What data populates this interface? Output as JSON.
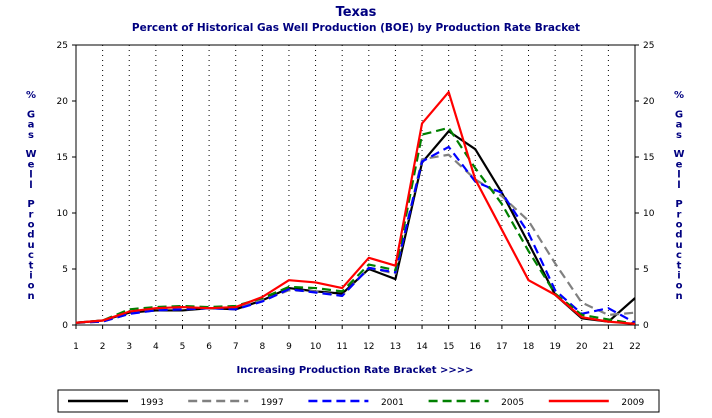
{
  "chart_data": {
    "type": "line",
    "title": "Texas",
    "subtitle": "Percent of Historical Gas Well Production (BOE) by Production Rate Bracket",
    "xlabel": "Increasing Production Rate Bracket >>>>",
    "ylabel": "% Gas Well Production",
    "xlim": [
      1,
      22
    ],
    "ylim": [
      0,
      25
    ],
    "x": [
      1,
      2,
      3,
      4,
      5,
      6,
      7,
      8,
      9,
      10,
      11,
      12,
      13,
      14,
      15,
      16,
      17,
      18,
      19,
      20,
      21,
      22
    ],
    "yticks": [
      0,
      5,
      10,
      15,
      20,
      25
    ],
    "grid": true,
    "legend_position": "bottom",
    "series": [
      {
        "name": "1993",
        "color": "#000000",
        "dash": "solid",
        "values": [
          0.2,
          0.4,
          1.1,
          1.3,
          1.3,
          1.5,
          1.4,
          2.2,
          3.3,
          3.0,
          2.8,
          5.0,
          4.1,
          14.5,
          17.3,
          15.7,
          11.8,
          7.3,
          2.7,
          0.6,
          0.3,
          2.4
        ]
      },
      {
        "name": "1997",
        "color": "#808080",
        "dash": "dashed",
        "values": [
          0.2,
          0.3,
          1.0,
          1.4,
          1.4,
          1.5,
          1.5,
          2.2,
          3.1,
          3.0,
          2.6,
          5.1,
          4.6,
          14.8,
          15.2,
          13.0,
          11.5,
          9.3,
          5.5,
          2.0,
          0.9,
          1.1
        ]
      },
      {
        "name": "2001",
        "color": "#0000ff",
        "dash": "dashed",
        "values": [
          0.2,
          0.3,
          1.0,
          1.3,
          1.4,
          1.5,
          1.4,
          2.1,
          3.2,
          2.9,
          2.6,
          5.1,
          4.7,
          14.6,
          15.9,
          12.8,
          11.8,
          8.2,
          3.1,
          1.0,
          1.5,
          0.2
        ]
      },
      {
        "name": "2005",
        "color": "#008000",
        "dash": "dashed",
        "values": [
          0.2,
          0.4,
          1.4,
          1.6,
          1.7,
          1.6,
          1.7,
          2.4,
          3.4,
          3.3,
          3.0,
          5.4,
          4.9,
          17.0,
          17.6,
          14.0,
          10.8,
          6.6,
          2.8,
          0.9,
          0.5,
          0.1
        ]
      },
      {
        "name": "2009",
        "color": "#ff0000",
        "dash": "solid",
        "values": [
          0.2,
          0.4,
          1.2,
          1.5,
          1.6,
          1.5,
          1.6,
          2.5,
          4.0,
          3.8,
          3.3,
          6.0,
          5.3,
          18.0,
          20.8,
          13.0,
          8.5,
          4.0,
          2.7,
          0.7,
          0.3,
          0.1
        ]
      }
    ]
  }
}
